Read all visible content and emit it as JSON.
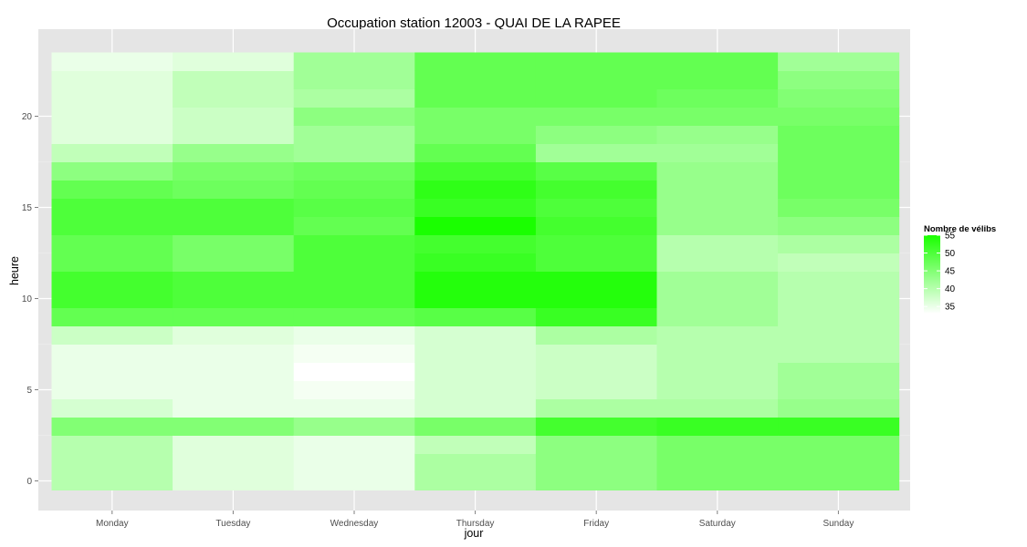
{
  "chart_data": {
    "type": "heatmap",
    "title": "Occupation station 12003 - QUAI DE LA RAPEE",
    "xlabel": "jour",
    "ylabel": "heure",
    "x_categories": [
      "Monday",
      "Tuesday",
      "Wednesday",
      "Thursday",
      "Friday",
      "Saturday",
      "Sunday"
    ],
    "y_range": [
      0,
      23
    ],
    "y_ticks": [
      0,
      5,
      10,
      15,
      20
    ],
    "y_tick_labels": [
      "0",
      "5",
      "10",
      "15",
      "20"
    ],
    "grid": true,
    "legend": {
      "title": "Nombre de vélibs",
      "position": "right",
      "min": 33,
      "max": 55,
      "breaks": [
        55,
        50,
        45,
        40,
        35
      ],
      "breaks_labels": [
        "55",
        "50",
        "45",
        "40",
        "35"
      ],
      "color_low": "#ffffff",
      "color_high": "#1aff00"
    },
    "series": [
      {
        "name": "Monday",
        "values": [
          40,
          40,
          40,
          45,
          37,
          35,
          35,
          35,
          38,
          48,
          51,
          51,
          48,
          48,
          50,
          50,
          48,
          44,
          39,
          36,
          36,
          36,
          36,
          35
        ]
      },
      {
        "name": "Tuesday",
        "values": [
          36,
          36,
          36,
          45,
          35,
          35,
          35,
          35,
          36,
          48,
          50,
          50,
          46,
          46,
          50,
          50,
          47,
          46,
          43,
          38,
          38,
          39,
          39,
          36
        ]
      },
      {
        "name": "Wednesday",
        "values": [
          35,
          35,
          35,
          43,
          35,
          34,
          33,
          34,
          35,
          48,
          50,
          50,
          50,
          50,
          48,
          49,
          48,
          47,
          42,
          42,
          44,
          41,
          42,
          42
        ]
      },
      {
        "name": "Thursday",
        "values": [
          41,
          41,
          39,
          46,
          37,
          37,
          37,
          37,
          37,
          49,
          54,
          54,
          52,
          51,
          55,
          52,
          53,
          51,
          48,
          46,
          46,
          48,
          48,
          48
        ]
      },
      {
        "name": "Friday",
        "values": [
          44,
          44,
          44,
          51,
          41,
          38,
          38,
          38,
          41,
          52,
          54,
          54,
          50,
          50,
          51,
          50,
          51,
          49,
          42,
          44,
          46,
          48,
          48,
          48
        ]
      },
      {
        "name": "Saturday",
        "values": [
          46,
          46,
          46,
          52,
          41,
          40,
          40,
          40,
          40,
          42,
          42,
          42,
          40,
          40,
          43,
          43,
          43,
          43,
          42,
          43,
          46,
          47,
          48,
          48
        ]
      },
      {
        "name": "Sunday",
        "values": [
          46,
          46,
          46,
          52,
          43,
          42,
          42,
          40,
          40,
          40,
          40,
          40,
          39,
          41,
          44,
          46,
          47,
          47,
          47,
          47,
          46,
          45,
          44,
          42
        ]
      }
    ]
  }
}
